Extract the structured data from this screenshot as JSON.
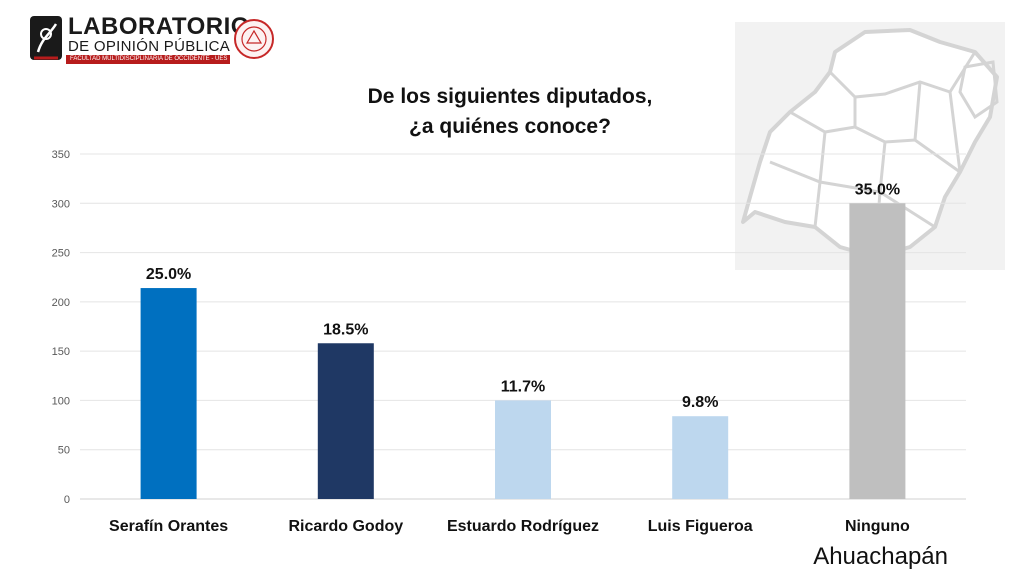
{
  "logo": {
    "title": "LABORATORIO",
    "subtitle": "DE OPINIÓN PÚBLICA",
    "band": "FACULTAD MULTIDISCIPLINARIA DE OCCIDENTE - UES",
    "colors": {
      "brand_red": "#b71c1c"
    }
  },
  "chart_data": {
    "type": "bar",
    "title_lines": [
      "De los siguientes diputados,",
      "¿a quiénes conoce?"
    ],
    "categories": [
      "Serafín Orantes",
      "Ricardo Godoy",
      "Estuardo Rodríguez",
      "Luis Figueroa",
      "Ninguno"
    ],
    "values": [
      214,
      158,
      100,
      84,
      300
    ],
    "data_labels": [
      "25.0%",
      "18.5%",
      "11.7%",
      "9.8%",
      "35.0%"
    ],
    "colors": [
      "#0070c0",
      "#1f3864",
      "#bdd7ee",
      "#bdd7ee",
      "#bfbfbf"
    ],
    "ylim": [
      0,
      350
    ],
    "yticks": [
      "0",
      "50",
      "100",
      "150",
      "200",
      "250",
      "300",
      "350"
    ],
    "ytick_values": [
      0,
      50,
      100,
      150,
      200,
      250,
      300,
      350
    ],
    "grid": true,
    "xlabel": "",
    "ylabel": ""
  },
  "region": "Ahuachapán"
}
